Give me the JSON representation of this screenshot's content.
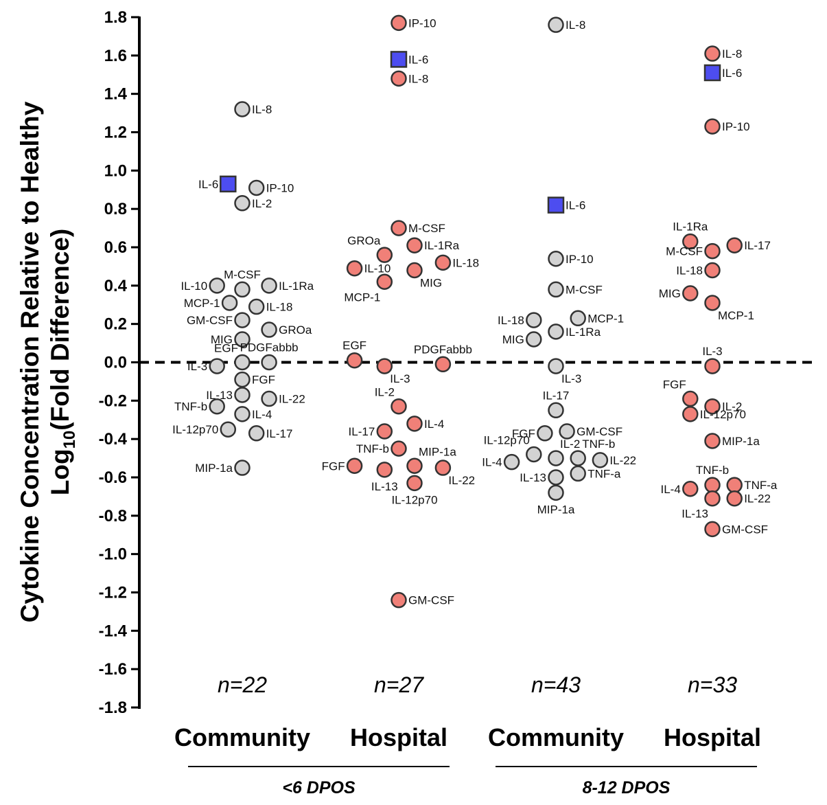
{
  "chart_data": {
    "type": "scatter",
    "ylabel_line1": "Cytokine Concentration Relative to Healthy",
    "ylabel_line2_pre": "Log",
    "ylabel_line2_sub": "10",
    "ylabel_line2_post": "(Fold Difference)",
    "ylim": [
      -1.8,
      1.8
    ],
    "yticks": [
      "1.8",
      "1.6",
      "1.4",
      "1.2",
      "1.0",
      "0.8",
      "0.6",
      "0.4",
      "0.2",
      "0.0",
      "-0.2",
      "-0.4",
      "-0.6",
      "-0.8",
      "-1.0",
      "-1.2",
      "-1.4",
      "-1.6",
      "-1.8"
    ],
    "reference_line": 0,
    "categories": [
      "Community",
      "Hospital",
      "Community",
      "Hospital"
    ],
    "n_labels": [
      "n=22",
      "n=27",
      "n=43",
      "n=33"
    ],
    "groups": [
      {
        "label": "<6 DPOS",
        "categories": [
          0,
          1
        ]
      },
      {
        "label": "8-12 DPOS",
        "categories": [
          2,
          3
        ]
      }
    ],
    "colors": {
      "community": "#d3d3d3",
      "hospital": "#f08078",
      "il6": "#4d4df0",
      "edge": "#333333"
    },
    "series": [
      {
        "name": "Community <6 DPOS",
        "points": [
          {
            "label": "IL-8",
            "y": 1.32,
            "dx": 0,
            "side": "right"
          },
          {
            "label": "IL-6",
            "y": 0.93,
            "dx": -0.9,
            "side": "left",
            "shape": "square"
          },
          {
            "label": "IP-10",
            "y": 0.91,
            "dx": 0.9,
            "side": "right"
          },
          {
            "label": "IL-2",
            "y": 0.83,
            "dx": 0,
            "side": "right"
          },
          {
            "label": "M-CSF",
            "y": 0.38,
            "dx": 0,
            "side": "top"
          },
          {
            "label": "IL-10",
            "y": 0.4,
            "dx": -1.6,
            "side": "left"
          },
          {
            "label": "IL-1Ra",
            "y": 0.4,
            "dx": 1.7,
            "side": "right"
          },
          {
            "label": "MCP-1",
            "y": 0.31,
            "dx": -0.8,
            "side": "left"
          },
          {
            "label": "IL-18",
            "y": 0.29,
            "dx": 0.9,
            "side": "right"
          },
          {
            "label": "GM-CSF",
            "y": 0.22,
            "dx": 0,
            "side": "left"
          },
          {
            "label": "GROa",
            "y": 0.17,
            "dx": 1.7,
            "side": "right"
          },
          {
            "label": "MIG",
            "y": 0.12,
            "dx": 0,
            "side": "left"
          },
          {
            "label": "PDGFabbb",
            "y": 0.0,
            "dx": 1.7,
            "side": "top"
          },
          {
            "label": "EGF",
            "y": 0.0,
            "dx": 0,
            "side": "topleft"
          },
          {
            "label": "IL-3",
            "y": -0.02,
            "dx": -1.6,
            "side": "left"
          },
          {
            "label": "FGF",
            "y": -0.09,
            "dx": 0,
            "side": "right"
          },
          {
            "label": "IL-13",
            "y": -0.17,
            "dx": 0,
            "side": "left"
          },
          {
            "label": "IL-22",
            "y": -0.19,
            "dx": 1.7,
            "side": "right"
          },
          {
            "label": "TNF-b",
            "y": -0.23,
            "dx": -1.6,
            "side": "left"
          },
          {
            "label": "IL-4",
            "y": -0.27,
            "dx": 0,
            "side": "right"
          },
          {
            "label": "IL-12p70",
            "y": -0.35,
            "dx": -0.9,
            "side": "left"
          },
          {
            "label": "IL-17",
            "y": -0.37,
            "dx": 0.9,
            "side": "right"
          },
          {
            "label": "MIP-1a",
            "y": -0.55,
            "dx": 0,
            "side": "left"
          }
        ]
      },
      {
        "name": "Hospital <6 DPOS",
        "points": [
          {
            "label": "IP-10",
            "y": 1.77,
            "dx": 0,
            "side": "right"
          },
          {
            "label": "IL-6",
            "y": 1.58,
            "dx": 0,
            "side": "right",
            "shape": "square"
          },
          {
            "label": "IL-8",
            "y": 1.48,
            "dx": 0,
            "side": "right"
          },
          {
            "label": "M-CSF",
            "y": 0.7,
            "dx": 0,
            "side": "right"
          },
          {
            "label": "IL-1Ra",
            "y": 0.61,
            "dx": 1.0,
            "side": "right"
          },
          {
            "label": "GROa",
            "y": 0.56,
            "dx": -0.9,
            "side": "topleft"
          },
          {
            "label": "IL-18",
            "y": 0.52,
            "dx": 2.8,
            "side": "right"
          },
          {
            "label": "IL-10",
            "y": 0.49,
            "dx": -2.8,
            "side": "right"
          },
          {
            "label": "MIG",
            "y": 0.48,
            "dx": 1.0,
            "side": "bottomright"
          },
          {
            "label": "MCP-1",
            "y": 0.42,
            "dx": -0.9,
            "side": "bottomleft"
          },
          {
            "label": "EGF",
            "y": 0.01,
            "dx": -2.8,
            "side": "top"
          },
          {
            "label": "PDGFabbb",
            "y": -0.01,
            "dx": 2.8,
            "side": "top"
          },
          {
            "label": "IL-3",
            "y": -0.02,
            "dx": -0.9,
            "side": "bottomright"
          },
          {
            "label": "IL-2",
            "y": -0.23,
            "dx": 0,
            "side": "topleft"
          },
          {
            "label": "IL-4",
            "y": -0.32,
            "dx": 1.0,
            "side": "right"
          },
          {
            "label": "IL-17",
            "y": -0.36,
            "dx": -0.9,
            "side": "left"
          },
          {
            "label": "TNF-b",
            "y": -0.45,
            "dx": 0,
            "side": "left"
          },
          {
            "label": "MIP-1a",
            "y": -0.54,
            "dx": 1.0,
            "side": "topright"
          },
          {
            "label": "FGF",
            "y": -0.54,
            "dx": -2.8,
            "side": "left"
          },
          {
            "label": "IL-22",
            "y": -0.55,
            "dx": 2.8,
            "side": "bottomright"
          },
          {
            "label": "IL-13",
            "y": -0.56,
            "dx": -0.9,
            "side": "bottom"
          },
          {
            "label": "IL-12p70",
            "y": -0.63,
            "dx": 1.0,
            "side": "bottom"
          },
          {
            "label": "GM-CSF",
            "y": -1.24,
            "dx": 0,
            "side": "right"
          }
        ]
      },
      {
        "name": "Community 8-12 DPOS",
        "points": [
          {
            "label": "IL-8",
            "y": 1.76,
            "dx": 0,
            "side": "right"
          },
          {
            "label": "IL-6",
            "y": 0.82,
            "dx": 0,
            "side": "right",
            "shape": "square"
          },
          {
            "label": "IP-10",
            "y": 0.54,
            "dx": 0,
            "side": "right"
          },
          {
            "label": "M-CSF",
            "y": 0.38,
            "dx": 0,
            "side": "right"
          },
          {
            "label": "MCP-1",
            "y": 0.23,
            "dx": 1.4,
            "side": "right"
          },
          {
            "label": "IL-18",
            "y": 0.22,
            "dx": -1.4,
            "side": "left"
          },
          {
            "label": "IL-1Ra",
            "y": 0.16,
            "dx": 0,
            "side": "right"
          },
          {
            "label": "MIG",
            "y": 0.12,
            "dx": -1.4,
            "side": "left"
          },
          {
            "label": "IL-3",
            "y": -0.02,
            "dx": 0,
            "side": "bottomright"
          },
          {
            "label": "IL-17",
            "y": -0.25,
            "dx": 0,
            "side": "top"
          },
          {
            "label": "GM-CSF",
            "y": -0.36,
            "dx": 0.7,
            "side": "right"
          },
          {
            "label": "FGF",
            "y": -0.37,
            "dx": -0.7,
            "side": "left"
          },
          {
            "label": "IL-12p70",
            "y": -0.48,
            "dx": -1.4,
            "side": "topleft"
          },
          {
            "label": "IL-2",
            "y": -0.5,
            "dx": 0,
            "side": "topright"
          },
          {
            "label": "TNF-b",
            "y": -0.5,
            "dx": 1.4,
            "side": "topright"
          },
          {
            "label": "IL-22",
            "y": -0.51,
            "dx": 2.8,
            "side": "right"
          },
          {
            "label": "IL-4",
            "y": -0.52,
            "dx": -2.8,
            "side": "left"
          },
          {
            "label": "TNF-a",
            "y": -0.58,
            "dx": 1.4,
            "side": "right"
          },
          {
            "label": "IL-13",
            "y": -0.6,
            "dx": 0,
            "side": "left"
          },
          {
            "label": "MIP-1a",
            "y": -0.68,
            "dx": 0,
            "side": "bottom"
          }
        ]
      },
      {
        "name": "Hospital 8-12 DPOS",
        "points": [
          {
            "label": "IL-8",
            "y": 1.61,
            "dx": 0,
            "side": "right"
          },
          {
            "label": "IL-6",
            "y": 1.51,
            "dx": 0,
            "side": "right",
            "shape": "square"
          },
          {
            "label": "IP-10",
            "y": 1.23,
            "dx": 0,
            "side": "right"
          },
          {
            "label": "IL-1Ra",
            "y": 0.63,
            "dx": -1.4,
            "side": "top"
          },
          {
            "label": "IL-17",
            "y": 0.61,
            "dx": 1.4,
            "side": "right"
          },
          {
            "label": "M-CSF",
            "y": 0.58,
            "dx": 0,
            "side": "left"
          },
          {
            "label": "IL-18",
            "y": 0.48,
            "dx": 0,
            "side": "left"
          },
          {
            "label": "MIG",
            "y": 0.36,
            "dx": -1.4,
            "side": "left"
          },
          {
            "label": "MCP-1",
            "y": 0.31,
            "dx": 0,
            "side": "bottomright"
          },
          {
            "label": "IL-3",
            "y": -0.02,
            "dx": 0,
            "side": "top"
          },
          {
            "label": "FGF",
            "y": -0.19,
            "dx": -1.4,
            "side": "topleft"
          },
          {
            "label": "IL-2",
            "y": -0.23,
            "dx": 0,
            "side": "right"
          },
          {
            "label": "IL-12p70",
            "y": -0.27,
            "dx": -1.4,
            "side": "right"
          },
          {
            "label": "MIP-1a",
            "y": -0.41,
            "dx": 0,
            "side": "right"
          },
          {
            "label": "TNF-b",
            "y": -0.64,
            "dx": 0,
            "side": "top"
          },
          {
            "label": "TNF-a",
            "y": -0.64,
            "dx": 1.4,
            "side": "right"
          },
          {
            "label": "IL-4",
            "y": -0.66,
            "dx": -1.4,
            "side": "left"
          },
          {
            "label": "IL-13",
            "y": -0.71,
            "dx": 0,
            "side": "bottomleft"
          },
          {
            "label": "IL-22",
            "y": -0.71,
            "dx": 1.4,
            "side": "right"
          },
          {
            "label": "GM-CSF",
            "y": -0.87,
            "dx": 0,
            "side": "right"
          }
        ]
      }
    ]
  }
}
